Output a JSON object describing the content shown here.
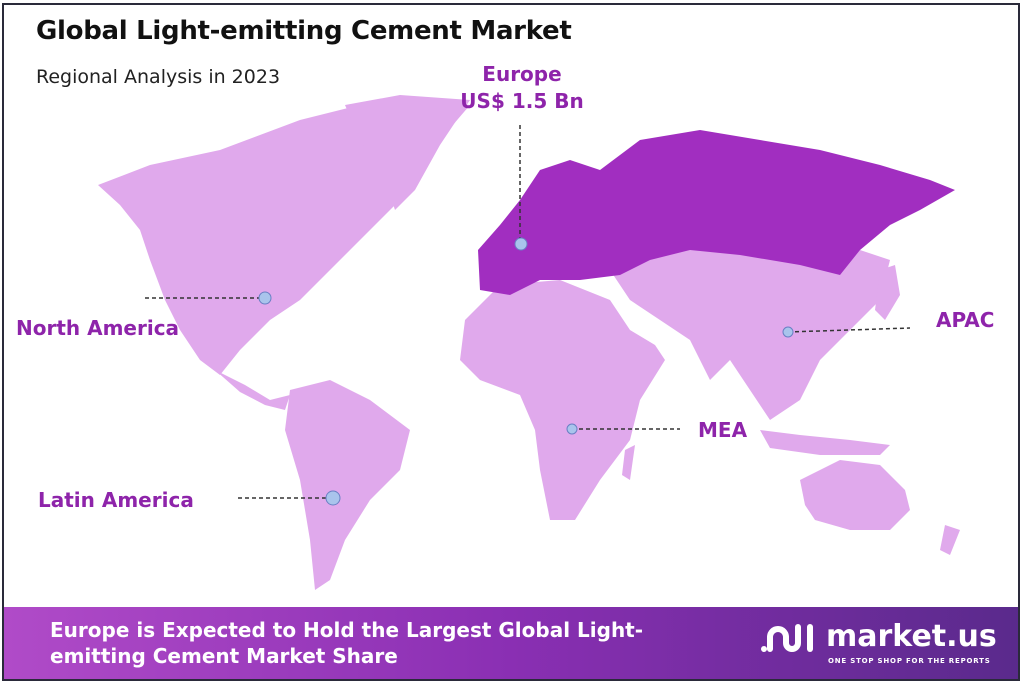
{
  "header": {
    "title": "Global Light-emitting Cement Market",
    "subtitle": "Regional Analysis in 2023"
  },
  "regions": [
    {
      "name": "North America",
      "highlighted": false
    },
    {
      "name": "Europe",
      "value": "US$ 1.5 Bn",
      "highlighted": true
    },
    {
      "name": "APAC",
      "highlighted": false
    },
    {
      "name": "MEA",
      "highlighted": false
    },
    {
      "name": "Latin America",
      "highlighted": false
    }
  ],
  "colors": {
    "highlight": "#a12ec0",
    "land": "#e0a9ec",
    "label": "#8e24aa",
    "marker": "#a9c4ec"
  },
  "footer": {
    "text": "Europe is Expected to Hold the Largest Global Light-emitting Cement Market Share",
    "brand": "market.us",
    "tagline": "ONE STOP SHOP FOR THE REPORTS"
  }
}
